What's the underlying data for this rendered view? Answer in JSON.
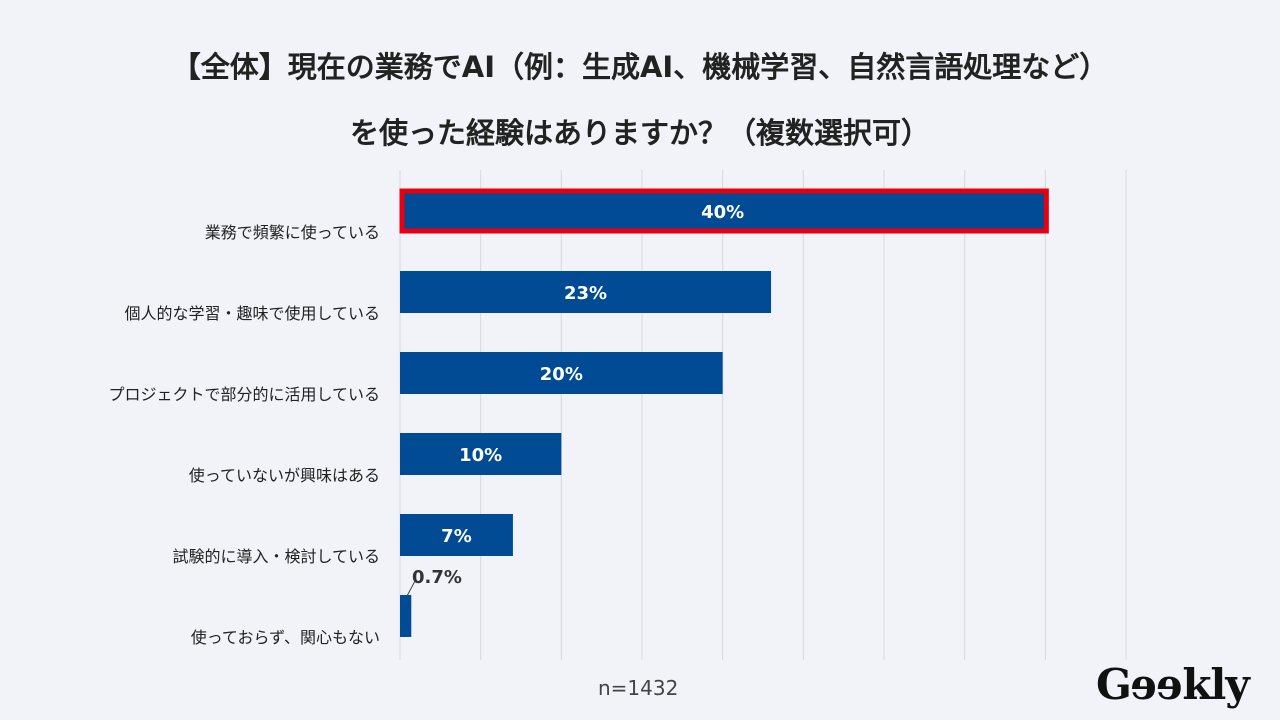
{
  "chart_data": {
    "type": "bar",
    "orientation": "horizontal",
    "title": "【全体】現在の業務でAI（例：生成AI、機械学習、自然言語処理など）",
    "subtitle": "を使った経験はありますか？（複数選択可）",
    "categories": [
      "業務で頻繁に使っている",
      "個人的な学習・趣味で使用している",
      "プロジェクトで部分的に活用している",
      "使っていないが興味はある",
      "試験的に導入・検討している",
      "使っておらず、関心もない"
    ],
    "values": [
      40,
      23,
      20,
      10,
      7,
      0.7
    ],
    "data_labels": [
      "40%",
      "23%",
      "20%",
      "10%",
      "7%",
      "0.7%"
    ],
    "highlighted_category": "業務で頻繁に使っている",
    "xlim": [
      0,
      45
    ],
    "grid_step": 5,
    "grid": true,
    "xlabel": "",
    "ylabel": "",
    "note": "n=1432",
    "colors": {
      "bar": "#004b93",
      "highlight": "#e60012",
      "grid": "#d6d8de",
      "text": "#222222"
    }
  },
  "logo": "Geekly"
}
